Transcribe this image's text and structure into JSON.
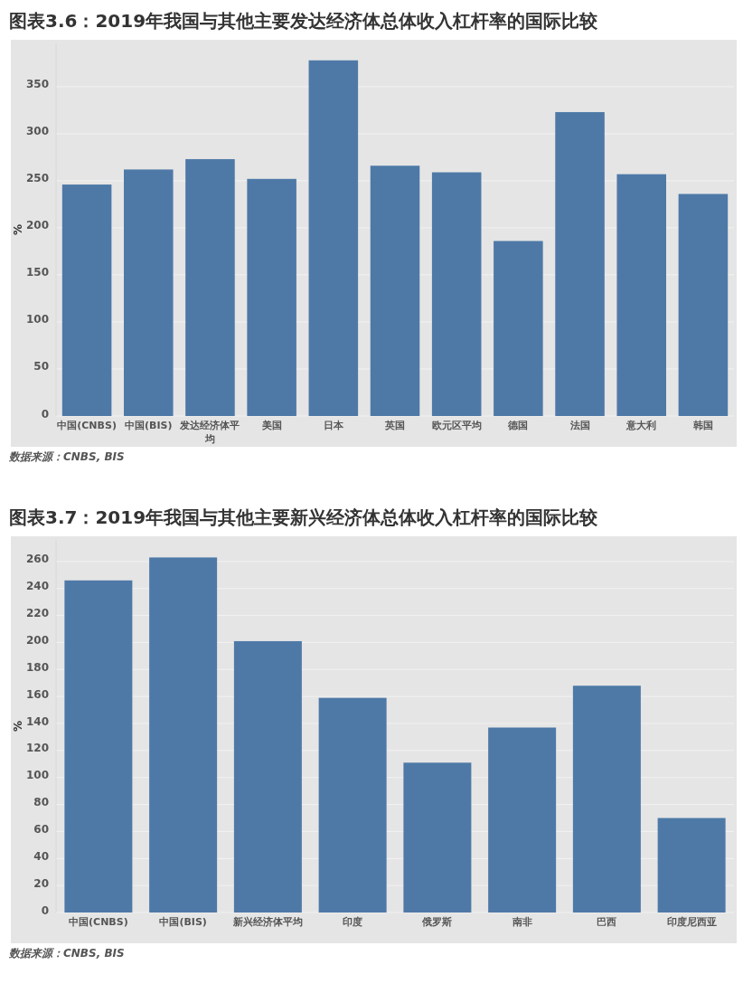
{
  "chart_data": [
    {
      "type": "bar",
      "title": "图表3.6：2019年我国与其他主要发达经济体总体收入杠杆率的国际比较",
      "ylabel": "%",
      "categories": [
        "中国(CNBS)",
        "中国(BIS)",
        "发达经济体平均",
        "美国",
        "日本",
        "英国",
        "欧元区平均",
        "德国",
        "法国",
        "意大利",
        "韩国"
      ],
      "values": [
        246,
        262,
        273,
        252,
        378,
        266,
        259,
        186,
        323,
        257,
        236
      ],
      "color": "#4e79a7",
      "ylim": [
        0,
        396
      ],
      "yticks": [
        0,
        50,
        100,
        150,
        200,
        250,
        300,
        350
      ],
      "grid": "y",
      "annotations": [
        "数据来源：CNBS, BIS"
      ]
    },
    {
      "type": "bar",
      "title": "图表3.7：2019年我国与其他主要新兴经济体总体收入杠杆率的国际比较",
      "ylabel": "%",
      "categories": [
        "中国(CNBS)",
        "中国(BIS)",
        "新兴经济体平均",
        "印度",
        "俄罗斯",
        "南非",
        "巴西",
        "印度尼西亚"
      ],
      "values": [
        246,
        263,
        201,
        159,
        111,
        137,
        168,
        70
      ],
      "color": "#4e79a7",
      "ylim": [
        0,
        276
      ],
      "yticks": [
        0,
        20,
        40,
        60,
        80,
        100,
        120,
        140,
        160,
        180,
        200,
        220,
        240,
        260
      ],
      "grid": "y",
      "annotations": [
        "数据来源：CNBS, BIS"
      ]
    }
  ]
}
